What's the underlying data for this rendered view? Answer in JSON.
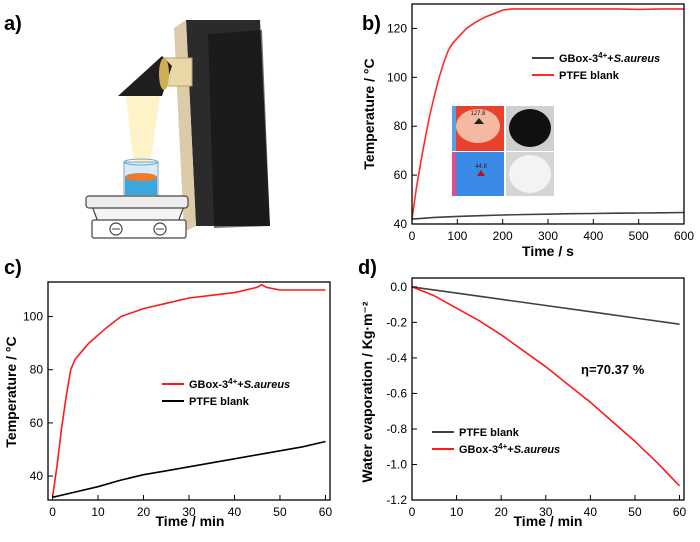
{
  "panels": {
    "a": {
      "label": "a)"
    },
    "b": {
      "label": "b)"
    },
    "c": {
      "label": "c)"
    },
    "d": {
      "label": "d)"
    }
  },
  "inset": {
    "hot_readout": "127.8",
    "cool_readout": "44.8"
  },
  "chart_data": [
    {
      "panel": "b",
      "type": "line",
      "title": "",
      "xlabel": "Time / s",
      "ylabel": "Temperature / °C",
      "xlim": [
        0,
        600
      ],
      "ylim": [
        40,
        130
      ],
      "xticks": [
        "0",
        "100",
        "200",
        "300",
        "400",
        "500",
        "600"
      ],
      "yticks": [
        "40",
        "60",
        "80",
        "100",
        "120"
      ],
      "legend": {
        "position": "upper-right",
        "entries": [
          {
            "series": 0,
            "prefix": "GBox-3",
            "sup": "4+",
            "mid": "+",
            "italic": "S.aureus"
          },
          {
            "series": 1,
            "prefix": "PTFE blank",
            "sup": "",
            "mid": "",
            "italic": ""
          }
        ]
      },
      "series": [
        {
          "name": "GBox-3⁴⁺+S.aureus",
          "color": "#404040",
          "x": [
            0,
            20,
            50,
            100,
            150,
            200,
            250,
            300,
            350,
            400,
            450,
            500,
            550,
            600
          ],
          "y": [
            42.0,
            42.3,
            42.7,
            43.1,
            43.4,
            43.7,
            43.9,
            44.0,
            44.2,
            44.3,
            44.4,
            44.5,
            44.6,
            44.7
          ]
        },
        {
          "name": "PTFE blank",
          "color": "#ff2a2a",
          "x": [
            0,
            10,
            20,
            30,
            40,
            50,
            60,
            70,
            80,
            90,
            100,
            120,
            140,
            160,
            180,
            200,
            220,
            250,
            300,
            350,
            400,
            450,
            500,
            550,
            600
          ],
          "y": [
            42,
            55,
            66,
            76,
            85,
            93,
            100,
            106,
            111,
            114,
            116,
            120,
            122.5,
            124.5,
            126,
            127.5,
            128,
            128,
            128,
            128,
            128,
            128,
            127.8,
            128,
            128
          ]
        }
      ]
    },
    {
      "panel": "c",
      "type": "line",
      "title": "",
      "xlabel": "Time / min",
      "ylabel": "Temperature / °C",
      "xlim": [
        -1,
        61
      ],
      "ylim": [
        31,
        113
      ],
      "xticks": [
        "0",
        "10",
        "20",
        "30",
        "40",
        "50",
        "60"
      ],
      "yticks": [
        "40",
        "60",
        "80",
        "100"
      ],
      "legend": {
        "position": "lower-right",
        "entries": [
          {
            "series": 0,
            "prefix": "GBox-3",
            "sup": "4+",
            "mid": "+",
            "italic": "S.aureus"
          },
          {
            "series": 1,
            "prefix": "PTFE blank",
            "sup": "",
            "mid": "",
            "italic": ""
          }
        ]
      },
      "series": [
        {
          "name": "GBox-3⁴⁺+S.aureus",
          "color": "#ff1a1a",
          "x": [
            0,
            1,
            2,
            3,
            4,
            5,
            6,
            8,
            10,
            12,
            15,
            20,
            25,
            30,
            35,
            40,
            45,
            46,
            47,
            50,
            55,
            60
          ],
          "y": [
            32,
            44,
            58,
            70,
            80,
            84,
            86,
            90,
            93,
            96,
            100,
            103,
            105,
            107,
            108,
            109,
            111,
            112,
            111,
            110,
            110,
            110
          ]
        },
        {
          "name": "PTFE blank",
          "color": "#000000",
          "x": [
            0,
            5,
            10,
            15,
            20,
            25,
            30,
            35,
            40,
            45,
            50,
            55,
            60
          ],
          "y": [
            32,
            34,
            36,
            38.5,
            40.5,
            42,
            43.5,
            45,
            46.5,
            48,
            49.5,
            51,
            53
          ]
        }
      ]
    },
    {
      "panel": "d",
      "type": "line",
      "title": "",
      "xlabel": "Time / min",
      "ylabel": "Water evaporation / Kg·m⁻²",
      "xlim": [
        0,
        61
      ],
      "ylim": [
        -1.2,
        0.05
      ],
      "xticks": [
        "0",
        "10",
        "20",
        "30",
        "40",
        "50",
        "60"
      ],
      "yticks": [
        "0.0",
        "-0.2",
        "-0.4",
        "-0.6",
        "-0.8",
        "-1.0",
        "-1.2"
      ],
      "annotation": "η=70.37 %",
      "legend": {
        "position": "lower-left",
        "entries": [
          {
            "series": 0,
            "prefix": "PTFE blank",
            "sup": "",
            "mid": "",
            "italic": ""
          },
          {
            "series": 1,
            "prefix": "GBox-3",
            "sup": "4+",
            "mid": "+",
            "italic": "S.aureus"
          }
        ]
      },
      "series": [
        {
          "name": "PTFE blank",
          "color": "#404040",
          "x": [
            0,
            10,
            20,
            30,
            40,
            50,
            60
          ],
          "y": [
            0,
            -0.035,
            -0.07,
            -0.105,
            -0.14,
            -0.175,
            -0.21
          ]
        },
        {
          "name": "GBox-3⁴⁺+S.aureus",
          "color": "#ff1a1a",
          "x": [
            0,
            5,
            10,
            15,
            20,
            25,
            30,
            35,
            40,
            45,
            50,
            55,
            60
          ],
          "y": [
            0,
            -0.05,
            -0.12,
            -0.19,
            -0.27,
            -0.36,
            -0.45,
            -0.55,
            -0.65,
            -0.76,
            -0.87,
            -0.99,
            -1.12
          ]
        }
      ]
    }
  ]
}
